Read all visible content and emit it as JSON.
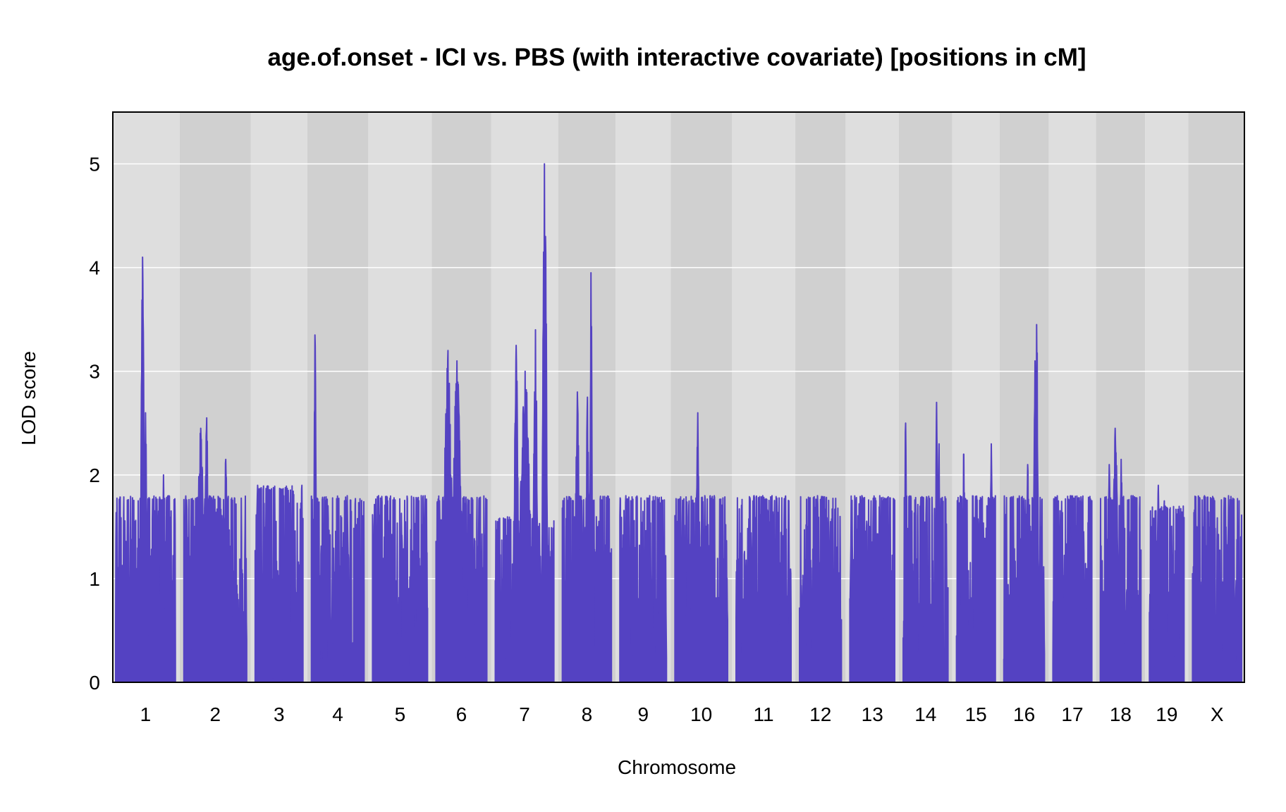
{
  "chart_data": {
    "type": "line",
    "title": "age.of.onset - ICI vs. PBS (with interactive covariate) [positions in cM]",
    "xlabel": "Chromosome",
    "ylabel": "LOD score",
    "ylim": [
      0,
      5.5
    ],
    "yticks": [
      "0",
      "1",
      "2",
      "3",
      "4",
      "5"
    ],
    "grid": true,
    "line_color": "#5442C2",
    "band_colors": [
      "#DEDEDE",
      "#D0D0D0"
    ],
    "chromosomes": [
      {
        "name": "1",
        "length": 100,
        "base": [
          0.4,
          1.8
        ],
        "peaks": [
          [
            45,
            4.1,
            2.5
          ],
          [
            50,
            2.6,
            2
          ],
          [
            80,
            2.0,
            2
          ]
        ]
      },
      {
        "name": "2",
        "length": 105,
        "base": [
          0.4,
          1.8
        ],
        "peaks": [
          [
            28,
            2.45,
            5
          ],
          [
            38,
            2.55,
            3
          ],
          [
            70,
            2.15,
            3
          ]
        ]
      },
      {
        "name": "3",
        "length": 80,
        "base": [
          0.4,
          1.9
        ],
        "peaks": [
          [
            4,
            1.9,
            2
          ],
          [
            78,
            1.9,
            2
          ]
        ]
      },
      {
        "name": "4",
        "length": 88,
        "base": [
          0.2,
          1.8
        ],
        "peaks": [
          [
            6,
            3.35,
            1.5
          ],
          [
            60,
            1.8,
            2
          ]
        ]
      },
      {
        "name": "5",
        "length": 92,
        "base": [
          0.4,
          1.8
        ],
        "peaks": [
          [
            10,
            1.8,
            3
          ],
          [
            88,
            1.8,
            3
          ]
        ]
      },
      {
        "name": "6",
        "length": 85,
        "base": [
          0.5,
          1.8
        ],
        "peaks": [
          [
            20,
            3.2,
            6
          ],
          [
            35,
            3.1,
            6
          ],
          [
            38,
            2.6,
            4
          ]
        ]
      },
      {
        "name": "7",
        "length": 98,
        "base": [
          0.2,
          1.6
        ],
        "peaks": [
          [
            35,
            3.25,
            3
          ],
          [
            50,
            3.0,
            8
          ],
          [
            67,
            3.4,
            3
          ],
          [
            82,
            5.0,
            2.5
          ],
          [
            84,
            4.3,
            2
          ]
        ]
      },
      {
        "name": "8",
        "length": 82,
        "base": [
          0.3,
          1.8
        ],
        "peaks": [
          [
            25,
            2.8,
            3
          ],
          [
            48,
            3.95,
            1.5
          ],
          [
            42,
            2.75,
            2
          ]
        ]
      },
      {
        "name": "9",
        "length": 78,
        "base": [
          0.4,
          1.8
        ],
        "peaks": [
          [
            10,
            1.8,
            2
          ],
          [
            50,
            1.8,
            2
          ]
        ]
      },
      {
        "name": "10",
        "length": 88,
        "base": [
          0.4,
          1.8
        ],
        "peaks": [
          [
            38,
            2.6,
            2
          ],
          [
            50,
            1.8,
            2
          ]
        ]
      },
      {
        "name": "11",
        "length": 92,
        "base": [
          0.4,
          1.8
        ],
        "peaks": [
          [
            30,
            1.8,
            4
          ],
          [
            60,
            1.8,
            4
          ]
        ]
      },
      {
        "name": "12",
        "length": 70,
        "base": [
          0.3,
          1.8
        ],
        "peaks": [
          [
            30,
            1.8,
            3
          ]
        ]
      },
      {
        "name": "13",
        "length": 75,
        "base": [
          0.4,
          1.8
        ],
        "peaks": [
          [
            20,
            1.8,
            3
          ],
          [
            50,
            1.8,
            3
          ]
        ]
      },
      {
        "name": "14",
        "length": 75,
        "base": [
          0.3,
          1.8
        ],
        "peaks": [
          [
            4,
            2.5,
            1.5
          ],
          [
            56,
            2.7,
            1.5
          ],
          [
            60,
            2.3,
            2
          ]
        ]
      },
      {
        "name": "15",
        "length": 65,
        "base": [
          0.4,
          1.8
        ],
        "peaks": [
          [
            12,
            2.2,
            2
          ],
          [
            58,
            2.3,
            1.5
          ]
        ]
      },
      {
        "name": "16",
        "length": 68,
        "base": [
          0.4,
          1.8
        ],
        "peaks": [
          [
            40,
            2.1,
            2
          ],
          [
            55,
            3.45,
            2
          ],
          [
            52,
            3.1,
            2
          ]
        ]
      },
      {
        "name": "17",
        "length": 65,
        "base": [
          0.4,
          1.8
        ],
        "peaks": [
          [
            30,
            1.8,
            3
          ]
        ]
      },
      {
        "name": "18",
        "length": 68,
        "base": [
          0.4,
          1.8
        ],
        "peaks": [
          [
            15,
            2.1,
            2
          ],
          [
            25,
            2.45,
            4
          ],
          [
            35,
            2.15,
            2
          ]
        ]
      },
      {
        "name": "19",
        "length": 58,
        "base": [
          0.4,
          1.7
        ],
        "peaks": [
          [
            15,
            1.9,
            2
          ],
          [
            25,
            1.75,
            2
          ]
        ]
      },
      {
        "name": "X",
        "length": 82,
        "base": [
          0.3,
          1.8
        ],
        "peaks": [
          [
            20,
            1.8,
            3
          ],
          [
            60,
            1.8,
            3
          ]
        ]
      }
    ]
  }
}
